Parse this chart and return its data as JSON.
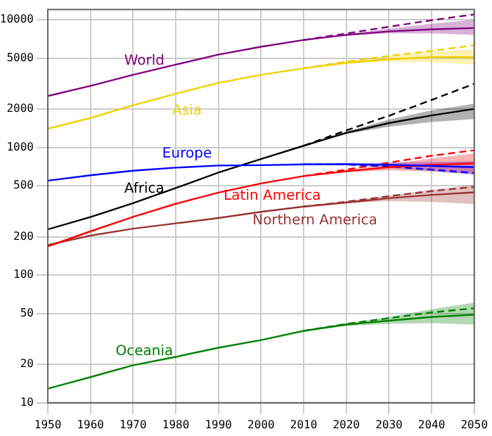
{
  "chart_data": {
    "type": "line",
    "log": "y",
    "grid": true,
    "legend": false,
    "marker": "none",
    "xlim": [
      1950,
      2050
    ],
    "xticks": [
      1950,
      1960,
      1970,
      1980,
      1990,
      2000,
      2010,
      2020,
      2030,
      2040,
      2050
    ],
    "ylim": [
      10,
      12000
    ],
    "yticks": [
      10,
      20,
      50,
      100,
      200,
      500,
      1000,
      2000,
      5000,
      10000
    ],
    "x": [
      1950,
      1960,
      1970,
      1980,
      1990,
      2000,
      2010,
      2020,
      2030,
      2040,
      2050
    ],
    "series": [
      {
        "name": "World",
        "color": "#800080",
        "values": [
          2525,
          3030,
          3700,
          4450,
          5330,
          6140,
          6930,
          7600,
          8100,
          8400,
          8600
        ],
        "lower": [
          null,
          null,
          null,
          null,
          null,
          null,
          6930,
          7500,
          7800,
          7800,
          7600
        ],
        "upper": [
          null,
          null,
          null,
          null,
          null,
          null,
          6930,
          7700,
          8500,
          9300,
          10000
        ]
      },
      {
        "name": "Asia",
        "color": "#f0d000",
        "values": [
          1400,
          1700,
          2140,
          2630,
          3200,
          3700,
          4160,
          4600,
          4900,
          5100,
          5100
        ],
        "lower": [
          null,
          null,
          null,
          null,
          null,
          null,
          4160,
          4500,
          4700,
          4650,
          4450
        ],
        "upper": [
          null,
          null,
          null,
          null,
          null,
          null,
          4160,
          4700,
          5200,
          5600,
          5900
        ]
      },
      {
        "name": "Europe",
        "color": "#0000ff",
        "values": [
          549,
          605,
          657,
          694,
          721,
          726,
          736,
          740,
          730,
          715,
          700
        ],
        "lower": [
          null,
          null,
          null,
          null,
          null,
          null,
          736,
          725,
          690,
          650,
          610
        ],
        "upper": [
          null,
          null,
          null,
          null,
          null,
          null,
          736,
          750,
          760,
          770,
          780
        ]
      },
      {
        "name": "Africa",
        "color": "#000000",
        "values": [
          228,
          285,
          366,
          480,
          635,
          810,
          1030,
          1300,
          1550,
          1780,
          2000
        ],
        "lower": [
          null,
          null,
          null,
          null,
          null,
          null,
          1030,
          1270,
          1450,
          1580,
          1670
        ],
        "upper": [
          null,
          null,
          null,
          null,
          null,
          null,
          1030,
          1330,
          1650,
          1950,
          2200
        ]
      },
      {
        "name": "Latin America",
        "color": "#ff0000",
        "values": [
          168,
          220,
          286,
          362,
          443,
          522,
          596,
          650,
          700,
          730,
          750
        ],
        "lower": [
          null,
          null,
          null,
          null,
          null,
          null,
          596,
          640,
          660,
          650,
          620
        ],
        "upper": [
          null,
          null,
          null,
          null,
          null,
          null,
          596,
          665,
          740,
          820,
          900
        ]
      },
      {
        "name": "Northern America",
        "color": "#993333",
        "values": [
          172,
          204,
          231,
          254,
          280,
          313,
          344,
          370,
          400,
          425,
          445
        ],
        "lower": [
          null,
          null,
          null,
          null,
          null,
          null,
          344,
          365,
          380,
          375,
          360
        ],
        "upper": [
          null,
          null,
          null,
          null,
          null,
          null,
          344,
          380,
          420,
          465,
          510
        ]
      },
      {
        "name": "Oceania",
        "color": "#008000",
        "values": [
          12.9,
          15.9,
          19.7,
          22.9,
          27,
          31,
          36.6,
          41,
          44,
          47,
          49
        ],
        "lower": [
          null,
          null,
          null,
          null,
          null,
          null,
          36.6,
          40,
          41.5,
          42,
          41
        ],
        "upper": [
          null,
          null,
          null,
          null,
          null,
          null,
          36.6,
          42,
          47,
          54,
          61
        ]
      },
      {
        "color": "#800080",
        "line_style": "dashed",
        "x": [
          2010,
          2020,
          2030,
          2040,
          2050
        ],
        "values": [
          6930,
          7800,
          8800,
          9900,
          11000
        ]
      },
      {
        "color": "#f0d000",
        "line_style": "dashed",
        "x": [
          2010,
          2020,
          2030,
          2040,
          2050
        ],
        "values": [
          4160,
          4700,
          5200,
          5700,
          6300
        ]
      },
      {
        "color": "#0000ff",
        "line_style": "dashed",
        "x": [
          2010,
          2020,
          2030,
          2040,
          2050
        ],
        "values": [
          736,
          735,
          710,
          670,
          630
        ]
      },
      {
        "color": "#000000",
        "line_style": "dashed",
        "x": [
          2010,
          2020,
          2030,
          2040,
          2050
        ],
        "values": [
          1030,
          1360,
          1770,
          2350,
          3150
        ]
      },
      {
        "color": "#ff0000",
        "line_style": "dashed",
        "x": [
          2010,
          2020,
          2030,
          2040,
          2050
        ],
        "values": [
          596,
          670,
          760,
          860,
          950
        ]
      },
      {
        "color": "#993333",
        "line_style": "dashed",
        "x": [
          2010,
          2020,
          2030,
          2040,
          2050
        ],
        "values": [
          344,
          375,
          415,
          455,
          490
        ]
      },
      {
        "color": "#008000",
        "line_style": "dashed",
        "x": [
          2010,
          2020,
          2030,
          2040,
          2050
        ],
        "values": [
          36.6,
          41.5,
          46,
          51,
          55
        ]
      }
    ]
  }
}
